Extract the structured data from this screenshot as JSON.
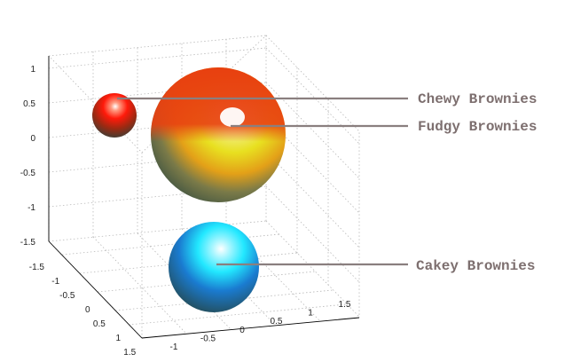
{
  "chart_data": {
    "type": "scatter",
    "subtype": "3d-sphere",
    "title": "",
    "z_ticks": [
      "1",
      "0.5",
      "0",
      "-0.5",
      "-1",
      "-1.5"
    ],
    "y_ticks": [
      "-1.5",
      "-1",
      "-0.5",
      "0",
      "0.5",
      "1",
      "1.5"
    ],
    "x_ticks": [
      "-1",
      "-0.5",
      "0",
      "0.5",
      "1",
      "1.5"
    ],
    "grid": true,
    "series": [
      {
        "name": "Chewy Brownies",
        "x": 0.5,
        "y": -0.5,
        "z": 0.5,
        "radius": 0.35,
        "colors": [
          "#ff1a0a",
          "#9a2a12",
          "#26433f"
        ]
      },
      {
        "name": "Fudgy Brownies",
        "x": 0.3,
        "y": 0.3,
        "z": 0.2,
        "radius": 0.9,
        "colors": [
          "#e8e020",
          "#e03e10",
          "#26433f"
        ]
      },
      {
        "name": "Cakey Brownies",
        "x": 0.0,
        "y": 0.5,
        "z": -1.2,
        "radius": 0.6,
        "colors": [
          "#22e8ff",
          "#1a7bd0",
          "#26433f"
        ]
      }
    ]
  }
}
